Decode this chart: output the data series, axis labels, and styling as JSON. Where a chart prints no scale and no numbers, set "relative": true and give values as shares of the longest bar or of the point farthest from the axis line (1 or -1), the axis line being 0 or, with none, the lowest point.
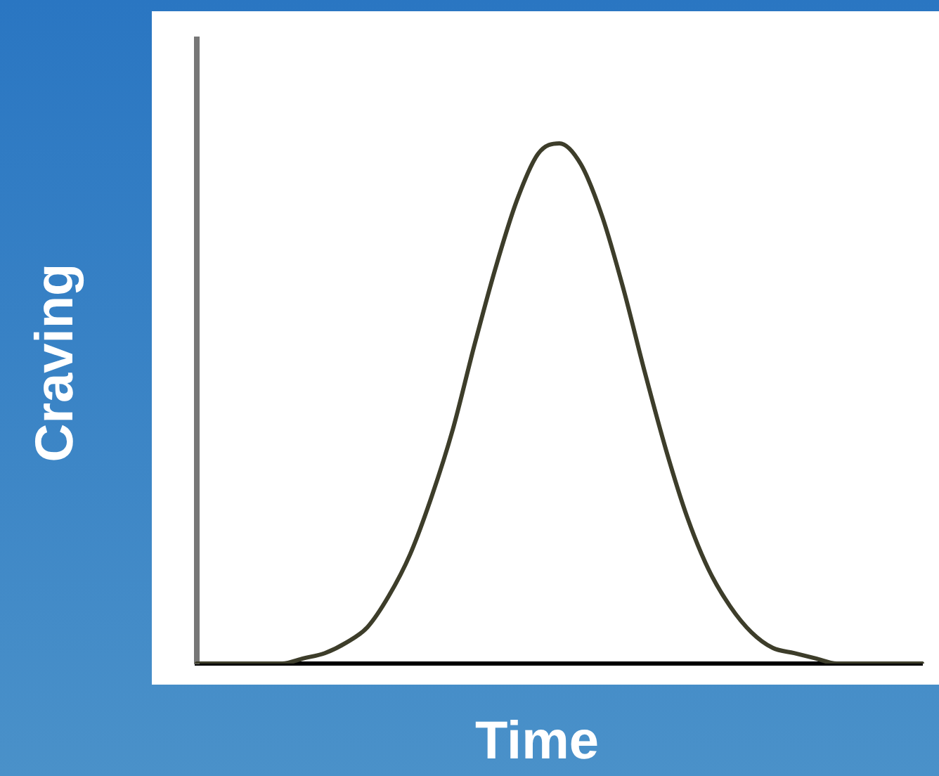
{
  "chart_data": {
    "type": "line",
    "relative": true,
    "xlabel": "Time",
    "ylabel": "Craving",
    "grid": false,
    "legend": false,
    "marker": "none",
    "line_style": "solid",
    "categories": [
      null,
      null,
      null,
      null,
      null,
      null,
      null,
      null,
      null,
      null,
      null,
      null,
      null,
      null,
      null,
      null,
      null,
      null,
      null,
      null,
      null,
      null,
      null,
      null,
      null,
      null,
      null,
      null,
      null,
      null,
      null,
      null,
      null,
      null,
      null
    ],
    "series": [
      {
        "color": "#3d3d2a",
        "values": [
          0,
          0,
          0,
          0,
          0,
          0.01,
          0.02,
          0.04,
          0.07,
          0.13,
          0.21,
          0.32,
          0.45,
          0.61,
          0.76,
          0.89,
          0.98,
          1,
          0.96,
          0.86,
          0.72,
          0.56,
          0.41,
          0.28,
          0.18,
          0.11,
          0.06,
          0.03,
          0.02,
          0.01,
          0,
          0,
          0,
          0,
          0
        ]
      }
    ]
  }
}
